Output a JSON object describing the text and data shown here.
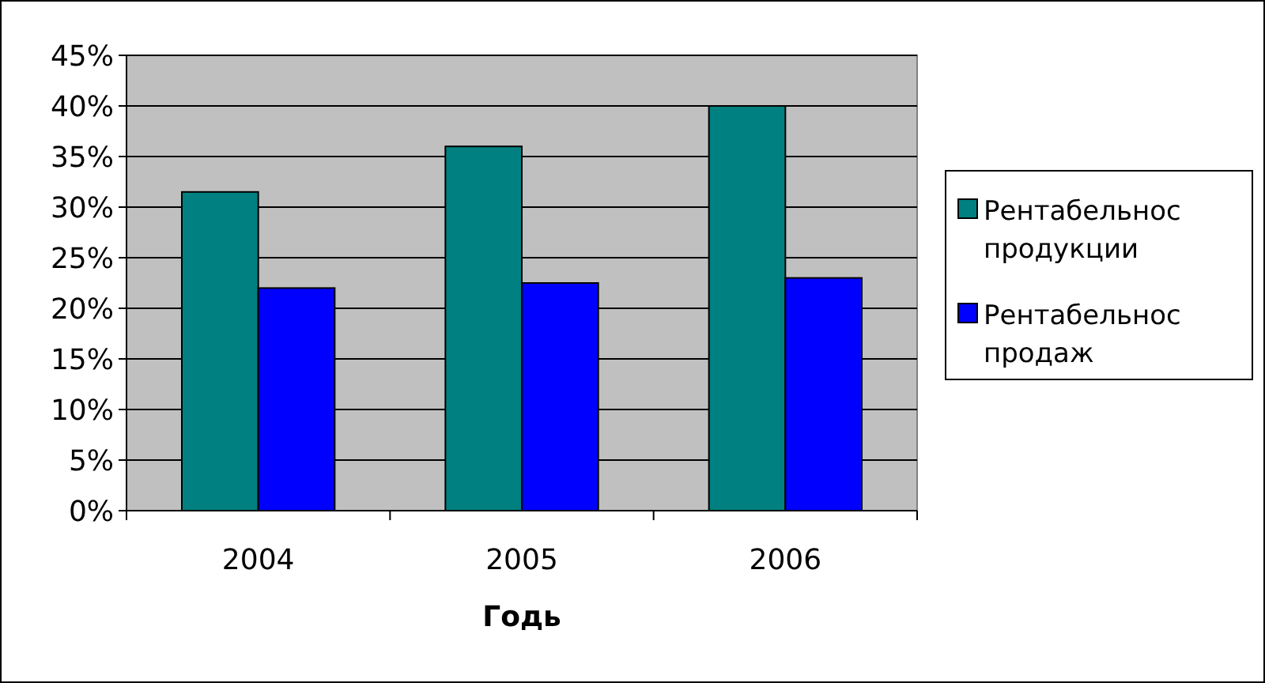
{
  "chart_data": {
    "type": "bar",
    "xlabel": "Годь",
    "categories": [
      "2004",
      "2005",
      "2006"
    ],
    "series": [
      {
        "name": "Рентабельнос продукции",
        "color": "#008080",
        "values": [
          31.5,
          36,
          40
        ]
      },
      {
        "name": "Рентабельнос продаж",
        "color": "#0000ff",
        "values": [
          22,
          22.5,
          23
        ]
      }
    ],
    "ylim": [
      0,
      45
    ],
    "yticks": [
      {
        "value": 0,
        "label": "0%"
      },
      {
        "value": 5,
        "label": "5%"
      },
      {
        "value": 10,
        "label": "10%"
      },
      {
        "value": 15,
        "label": "15%"
      },
      {
        "value": 20,
        "label": "20%"
      },
      {
        "value": 25,
        "label": "25%"
      },
      {
        "value": 30,
        "label": "30%"
      },
      {
        "value": 35,
        "label": "35%"
      },
      {
        "value": 40,
        "label": "40%"
      },
      {
        "value": 45,
        "label": "45%"
      }
    ],
    "grid": "y",
    "legend": "right"
  }
}
